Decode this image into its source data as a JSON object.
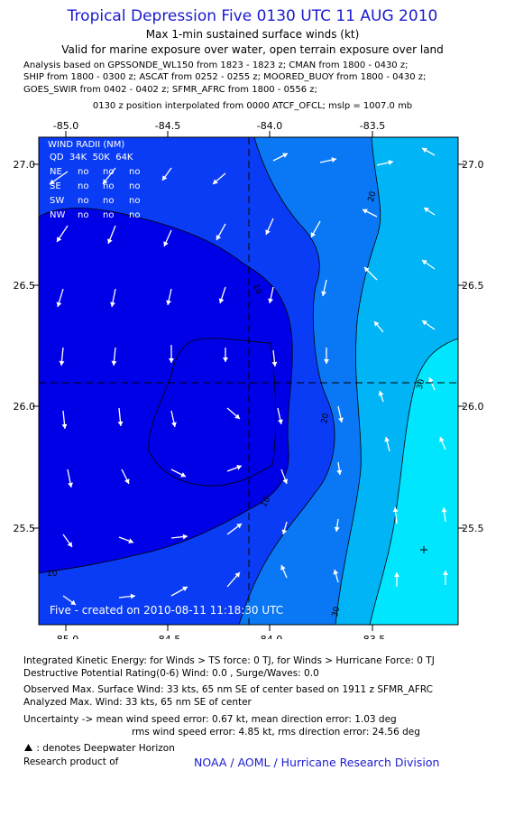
{
  "title": "Tropical Depression Five 0130 UTC 11 AUG 2010",
  "subtitle1": "Max 1-min sustained surface winds (kt)",
  "subtitle2": "Valid for marine exposure over water, open terrain exposure over land",
  "analysis_lines": [
    "Analysis based on GPSSONDE_WL150 from 1823 - 1823 z; CMAN from 1800 - 0430 z;",
    "SHIP from 1800 - 0300 z; ASCAT from 0252 - 0255 z; MOORED_BUOY from 1800 - 0430 z;",
    "GOES_SWIR from 0402 - 0402 z; SFMR_AFRC from 1800 - 0556 z;"
  ],
  "position_line": "0130 z position interpolated from 0000 ATCF_OFCL; mslp = 1007.0 mb",
  "map": {
    "lon_ticks": [
      "-85.0",
      "-84.5",
      "-84.0",
      "-83.5"
    ],
    "lat_ticks": [
      "27.0",
      "26.5",
      "26.0",
      "25.5"
    ],
    "contour_labels": [
      "10",
      "20",
      "30",
      "10",
      "30",
      "10",
      "20"
    ],
    "wind_radii": {
      "header1": "WIND RADII (NM)",
      "header2": "QD  34K  50K  64K",
      "rows": [
        {
          "quad": "NE",
          "r34": "no",
          "r50": "no",
          "r64": "no"
        },
        {
          "quad": "SE",
          "r34": "no",
          "r50": "no",
          "r64": "no"
        },
        {
          "quad": "SW",
          "r34": "no",
          "r50": "no",
          "r64": "no"
        },
        {
          "quad": "NW",
          "r34": "no",
          "r50": "no",
          "r64": "no"
        }
      ]
    },
    "footer": "Five - created on 2010-08-11 11:18:30 UTC",
    "colors": {
      "band_lt10": "#0000e6",
      "band_10_20": "#0a3cf5",
      "band_20_30": "#0a78f5",
      "band_30_40": "#00b4f5",
      "band_gt40": "#00e6ff",
      "arrow": "#ffffff"
    }
  },
  "bottom": {
    "ike": "Integrated Kinetic Energy:  for Winds > TS force: 0 TJ,  for Winds > Hurricane Force: 0 TJ",
    "dpr": "Destructive Potential Rating(0-6)   Wind: 0.0 , Surge/Waves: 0.0",
    "observed": "Observed Max. Surface Wind: 33 kts, 65 nm SE of center based on 1911 z SFMR_AFRC",
    "analyzed": "Analyzed Max. Wind: 33 kts, 65 nm SE of center",
    "uncert1": "Uncertainty -> mean wind speed error: 0.67 kt,   mean direction error: 1.03 deg",
    "uncert2": "rms wind speed error: 4.85 kt,   rms direction error: 24.56 deg",
    "deepwater": ": denotes Deepwater Horizon",
    "research": "Research product of",
    "credit": "NOAA / AOML / Hurricane Research Division"
  }
}
